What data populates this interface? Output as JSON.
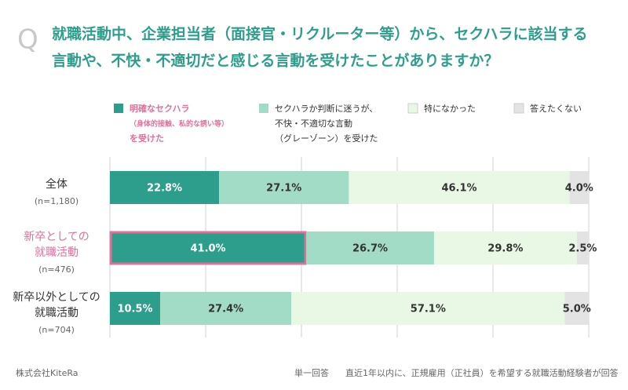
{
  "q_mark": "Q",
  "chart_data": {
    "type": "stacked-bar-horizontal",
    "title": [
      "就職活動中、企業担当者（面接官・リクルーター等）から、セクハラに該当する",
      "言動や、不快・不適切だと感じる言動を受けたことがありますか？"
    ],
    "categories": [
      [
        "全体"
      ],
      [
        "新卒としての",
        "就職活動"
      ],
      [
        "新卒以外としての",
        "就職活動"
      ]
    ],
    "sample_labels": [
      "(n=1,180)",
      "(n=476)",
      "(n=704)"
    ],
    "highlight": 1,
    "xlim": [
      0,
      100
    ],
    "xticks": [
      0,
      20,
      40,
      60,
      80,
      100
    ],
    "grid": true,
    "series": [
      {
        "name": [
          "明確なセクハラ",
          "（身体的接触、私的な誘い等）",
          "を受けた"
        ],
        "color": "#2e9e8c",
        "values": [
          22.8,
          41.0,
          10.5
        ],
        "value_labels": [
          "22.8%",
          "41.0%",
          "10.5%"
        ]
      },
      {
        "name": [
          "セクハラか判断に迷うが、",
          "不快・不適切な言動",
          "（グレーゾーン）を受けた"
        ],
        "color": "#a3dcc6",
        "values": [
          27.1,
          26.7,
          27.4
        ],
        "value_labels": [
          "27.1%",
          "26.7%",
          "27.4%"
        ]
      },
      {
        "name": [
          "特になかった"
        ],
        "color": "#e8f8e5",
        "values": [
          46.1,
          29.8,
          57.1
        ],
        "value_labels": [
          "46.1%",
          "29.8%",
          "57.1%"
        ]
      },
      {
        "name": [
          "答えたくない"
        ],
        "color": "#e3e3e3",
        "values": [
          4.0,
          2.5,
          5.0
        ],
        "value_labels": [
          "4.0%",
          "2.5%",
          "5.0%"
        ]
      }
    ]
  },
  "footer": {
    "company": "株式会社KiteRa",
    "answer_type": "単一回答",
    "note": "直近1年以内に、正規雇用（正社員）を希望する就職活動経験者が回答"
  }
}
